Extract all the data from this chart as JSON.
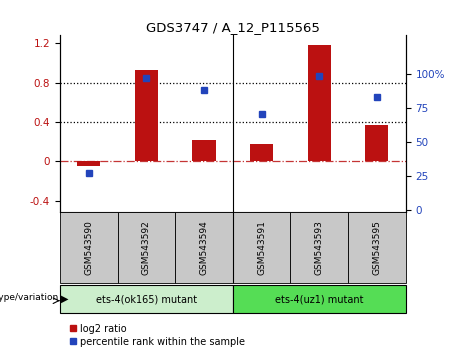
{
  "title": "GDS3747 / A_12_P115565",
  "samples": [
    "GSM543590",
    "GSM543592",
    "GSM543594",
    "GSM543591",
    "GSM543593",
    "GSM543595"
  ],
  "log2_ratio": [
    -0.05,
    0.93,
    0.22,
    0.18,
    1.18,
    0.37
  ],
  "percentile_rank": [
    27,
    97,
    88,
    70,
    98,
    83
  ],
  "bar_color": "#bb1111",
  "dot_color": "#2244bb",
  "group1_label": "ets-4(ok165) mutant",
  "group2_label": "ets-4(uz1) mutant",
  "group1_bg": "#cceecc",
  "group2_bg": "#55dd55",
  "sample_bg": "#c8c8c8",
  "left_ylim": [
    -0.52,
    1.28
  ],
  "right_ylim": [
    -2,
    128
  ],
  "left_yticks": [
    -0.4,
    0.0,
    0.4,
    0.8,
    1.2
  ],
  "right_yticks": [
    0,
    25,
    50,
    75,
    100
  ],
  "hlines": [
    0.4,
    0.8
  ],
  "legend_red": "log2 ratio",
  "legend_blue": "percentile rank within the sample"
}
